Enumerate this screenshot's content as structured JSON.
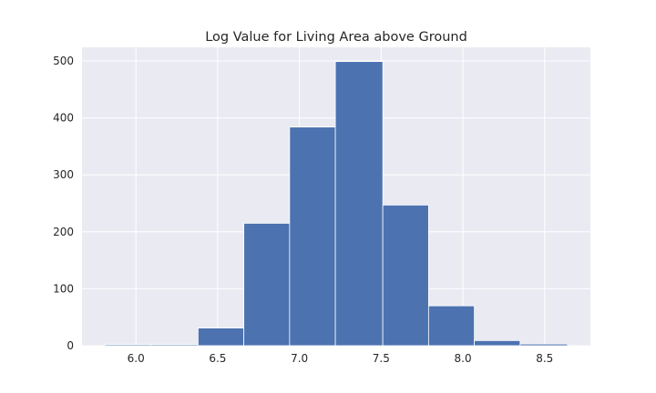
{
  "chart_data": {
    "type": "histogram",
    "title": "Log Value for Living Area above Ground",
    "xlabel": "",
    "ylabel": "",
    "bins": [
      {
        "start": 5.81,
        "end": 6.09,
        "count": 2
      },
      {
        "start": 6.09,
        "end": 6.38,
        "count": 2
      },
      {
        "start": 6.38,
        "end": 6.66,
        "count": 31
      },
      {
        "start": 6.66,
        "end": 6.94,
        "count": 215
      },
      {
        "start": 6.94,
        "end": 7.22,
        "count": 384
      },
      {
        "start": 7.22,
        "end": 7.51,
        "count": 499
      },
      {
        "start": 7.51,
        "end": 7.79,
        "count": 247
      },
      {
        "start": 7.79,
        "end": 8.07,
        "count": 70
      },
      {
        "start": 8.07,
        "end": 8.35,
        "count": 9
      },
      {
        "start": 8.35,
        "end": 8.64,
        "count": 3
      }
    ],
    "xlim": [
      5.67,
      8.78
    ],
    "ylim": [
      0,
      524
    ],
    "xticks": [
      6.0,
      6.5,
      7.0,
      7.5,
      8.0,
      8.5
    ],
    "xtick_labels": [
      "6.0",
      "6.5",
      "7.0",
      "7.5",
      "8.0",
      "8.5"
    ],
    "yticks": [
      0,
      100,
      200,
      300,
      400,
      500
    ],
    "ytick_labels": [
      "0",
      "100",
      "200",
      "300",
      "400",
      "500"
    ],
    "grid": true,
    "colors": {
      "bar": "#4c72b0",
      "plot_background": "#eaeaf2",
      "grid": "#ffffff"
    }
  }
}
